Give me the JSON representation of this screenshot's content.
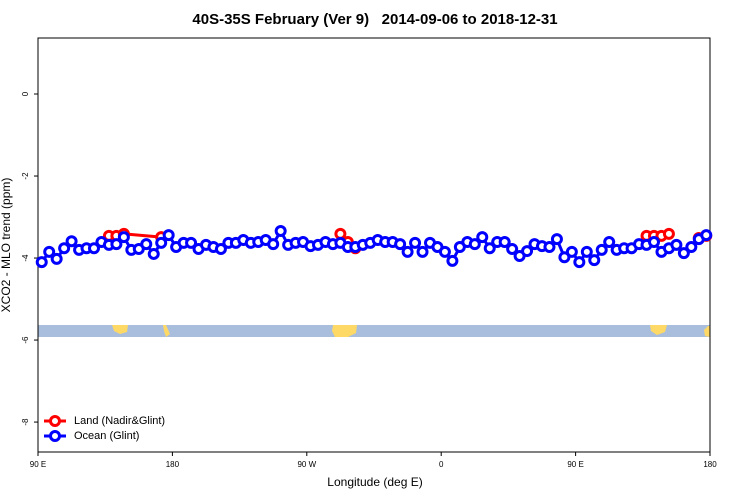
{
  "chart_data": {
    "type": "line",
    "title": "40S-35S February (Ver 9)   2014-09-06 to 2018-12-31",
    "x_label": "Longitude (deg E)",
    "y_label": "XCO2 - MLO trend (ppm)",
    "xlim": [
      90,
      540
    ],
    "ylim": [
      1.366,
      -8.73
    ],
    "xticks": [
      {
        "value": 90,
        "label": "90 E"
      },
      180,
      {
        "value": 270,
        "label": "90 W"
      },
      {
        "value": 360,
        "label": "0"
      },
      {
        "value": 450,
        "label": "90 E"
      },
      {
        "value": 540,
        "label": "180"
      }
    ],
    "yticks": [
      0,
      -2,
      -4,
      -6,
      -8
    ],
    "legend": "bottomleft",
    "series": [
      {
        "name": "Land (Nadir&Glint)",
        "color": "#ff0000",
        "x": [
          137.5,
          142.5,
          147.5,
          172.5,
          177.5,
          292.5,
          297.5,
          302.5,
          307.5,
          497.5,
          502.5,
          507.5,
          512.5,
          517.5,
          532.5,
          537.5
        ],
        "values": [
          -3.46,
          -3.46,
          -3.41,
          -3.49,
          null,
          -3.41,
          -3.61,
          -3.76,
          null,
          -3.46,
          -3.46,
          -3.46,
          -3.41,
          null,
          -3.51,
          -3.46
        ]
      },
      {
        "name": "Ocean (Glint)",
        "color": "#0000ff",
        "x": [
          92.5,
          97.5,
          102.5,
          107.5,
          112.5,
          117.5,
          122.5,
          127.5,
          132.5,
          137.5,
          142.5,
          147.5,
          152.5,
          157.5,
          162.5,
          167.5,
          172.5,
          177.5,
          182.5,
          187.5,
          192.5,
          197.5,
          202.5,
          207.5,
          212.5,
          217.5,
          222.5,
          227.5,
          232.5,
          237.5,
          242.5,
          247.5,
          252.5,
          257.5,
          262.5,
          267.5,
          272.5,
          277.5,
          282.5,
          287.5,
          292.5,
          297.5,
          302.5,
          307.5,
          312.5,
          317.5,
          322.5,
          327.5,
          332.5,
          337.5,
          342.5,
          347.5,
          352.5,
          357.5,
          362.5,
          367.5,
          372.5,
          377.5,
          382.5,
          387.5,
          392.5,
          397.5,
          402.5,
          407.5,
          412.5,
          417.5,
          422.5,
          427.5,
          432.5,
          437.5,
          442.5,
          447.5,
          452.5,
          457.5,
          462.5,
          467.5,
          472.5,
          477.5,
          482.5,
          487.5,
          492.5,
          497.5,
          502.5,
          507.5,
          512.5,
          517.5,
          522.5,
          527.5,
          532.5,
          537.5
        ],
        "values": [
          -4.1,
          -3.85,
          -4.02,
          -3.76,
          -3.59,
          -3.8,
          -3.76,
          -3.76,
          -3.61,
          -3.68,
          -3.66,
          -3.49,
          -3.8,
          -3.78,
          -3.66,
          -3.9,
          -3.63,
          -3.44,
          -3.73,
          -3.63,
          -3.63,
          -3.78,
          -3.68,
          -3.73,
          -3.78,
          -3.63,
          -3.63,
          -3.56,
          -3.63,
          -3.61,
          -3.56,
          -3.66,
          -3.34,
          -3.68,
          -3.63,
          -3.61,
          -3.71,
          -3.68,
          -3.61,
          -3.66,
          -3.63,
          -3.73,
          -3.73,
          -3.68,
          -3.63,
          -3.56,
          -3.61,
          -3.61,
          -3.66,
          -3.85,
          -3.63,
          -3.85,
          -3.63,
          -3.73,
          -3.85,
          -4.07,
          -3.73,
          -3.61,
          -3.66,
          -3.49,
          -3.76,
          -3.61,
          -3.61,
          -3.78,
          -3.95,
          -3.83,
          -3.66,
          -3.71,
          -3.73,
          -3.54,
          -3.98,
          -3.85,
          -4.1,
          -3.85,
          -4.05,
          -3.8,
          -3.61,
          -3.8,
          -3.76,
          -3.76,
          -3.66,
          -3.68,
          -3.61,
          -3.85,
          -3.76,
          -3.68,
          -3.88,
          -3.73,
          -3.54,
          -3.44
        ]
      }
    ]
  }
}
